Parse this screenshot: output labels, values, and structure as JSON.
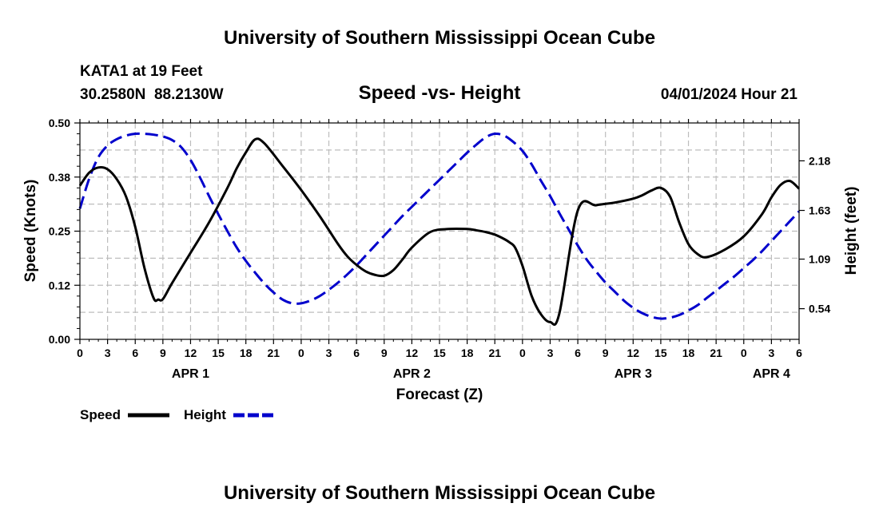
{
  "chart_data": {
    "type": "line",
    "title": "University of Southern Mississippi Ocean Cube",
    "footer_title": "University of Southern Mississippi Ocean Cube",
    "station": "KATA1 at 19 Feet",
    "location": "30.2580N  88.2130W",
    "subtitle": "Speed -vs- Height",
    "timestamp": "04/01/2024 Hour 21",
    "xlabel": "Forecast (Z)",
    "ylabel_left": "Speed (Knots)",
    "ylabel_right": "Height (feet)",
    "x_range": [
      0,
      78
    ],
    "ylim_left": [
      0,
      0.5
    ],
    "ylim_right": [
      0.2,
      2.6
    ],
    "left_ticks": [
      {
        "v": 0.0,
        "label": "0.00"
      },
      {
        "v": 0.125,
        "label": "0.12"
      },
      {
        "v": 0.25,
        "label": "0.25"
      },
      {
        "v": 0.375,
        "label": "0.38"
      },
      {
        "v": 0.5,
        "label": "0.50"
      }
    ],
    "right_ticks": [
      {
        "v": 0.54,
        "label": "0.54"
      },
      {
        "v": 1.09,
        "label": "1.09"
      },
      {
        "v": 1.63,
        "label": "1.63"
      },
      {
        "v": 2.18,
        "label": "2.18"
      }
    ],
    "x_ticks": [
      {
        "x": 0,
        "label": "0"
      },
      {
        "x": 3,
        "label": "3"
      },
      {
        "x": 6,
        "label": "6"
      },
      {
        "x": 9,
        "label": "9"
      },
      {
        "x": 12,
        "label": "12"
      },
      {
        "x": 15,
        "label": "15"
      },
      {
        "x": 18,
        "label": "18"
      },
      {
        "x": 21,
        "label": "21"
      },
      {
        "x": 24,
        "label": "0"
      },
      {
        "x": 27,
        "label": "3"
      },
      {
        "x": 30,
        "label": "6"
      },
      {
        "x": 33,
        "label": "9"
      },
      {
        "x": 36,
        "label": "12"
      },
      {
        "x": 39,
        "label": "15"
      },
      {
        "x": 42,
        "label": "18"
      },
      {
        "x": 45,
        "label": "21"
      },
      {
        "x": 48,
        "label": "0"
      },
      {
        "x": 51,
        "label": "3"
      },
      {
        "x": 54,
        "label": "6"
      },
      {
        "x": 57,
        "label": "9"
      },
      {
        "x": 60,
        "label": "12"
      },
      {
        "x": 63,
        "label": "15"
      },
      {
        "x": 66,
        "label": "18"
      },
      {
        "x": 69,
        "label": "21"
      },
      {
        "x": 72,
        "label": "0"
      },
      {
        "x": 75,
        "label": "3"
      },
      {
        "x": 78,
        "label": "6"
      }
    ],
    "day_labels": [
      {
        "x": 12,
        "label": "APR 1"
      },
      {
        "x": 36,
        "label": "APR 2"
      },
      {
        "x": 60,
        "label": "APR 3"
      },
      {
        "x": 75,
        "label": "APR 4"
      }
    ],
    "legend": [
      {
        "name": "Speed",
        "color": "#000000",
        "dash": "solid"
      },
      {
        "name": "Height",
        "color": "#0000cc",
        "dash": "dashed"
      }
    ],
    "series": [
      {
        "name": "Speed",
        "axis": "left",
        "color": "#000000",
        "x": [
          0,
          1,
          2,
          3,
          4,
          5,
          6,
          7,
          8,
          8.5,
          9,
          10,
          12,
          14,
          16,
          17,
          18,
          19,
          20,
          22,
          24,
          26,
          28,
          29,
          30,
          31,
          32,
          33,
          34,
          35,
          36,
          38,
          40,
          42,
          43,
          44,
          45,
          46,
          46.6,
          47.2,
          48,
          49,
          50,
          51,
          52,
          54,
          56,
          58,
          60,
          61,
          62,
          63,
          64,
          65,
          66,
          67,
          68,
          70,
          72,
          74,
          75,
          76,
          77,
          78
        ],
        "values": [
          0.355,
          0.385,
          0.397,
          0.393,
          0.37,
          0.33,
          0.26,
          0.165,
          0.095,
          0.092,
          0.093,
          0.13,
          0.2,
          0.27,
          0.35,
          0.395,
          0.432,
          0.462,
          0.453,
          0.4,
          0.345,
          0.285,
          0.22,
          0.192,
          0.172,
          0.157,
          0.149,
          0.147,
          0.16,
          0.185,
          0.212,
          0.248,
          0.255,
          0.255,
          0.252,
          0.248,
          0.242,
          0.232,
          0.224,
          0.212,
          0.17,
          0.1,
          0.058,
          0.04,
          0.06,
          0.298,
          0.31,
          0.316,
          0.325,
          0.333,
          0.344,
          0.35,
          0.33,
          0.27,
          0.22,
          0.197,
          0.19,
          0.208,
          0.238,
          0.29,
          0.328,
          0.357,
          0.366,
          0.348
        ]
      },
      {
        "name": "Height",
        "axis": "right",
        "color": "#0000cc",
        "x": [
          0,
          1,
          2,
          3,
          4,
          5,
          6,
          7,
          8,
          9,
          10,
          11,
          12,
          13,
          14,
          15,
          16,
          17,
          18,
          19,
          20,
          21,
          22,
          23,
          24,
          25,
          26,
          27,
          28,
          29,
          30,
          31,
          32,
          33,
          34,
          35,
          36,
          37,
          38,
          39,
          40,
          41,
          42,
          43,
          44,
          45,
          46,
          47,
          48,
          49,
          50,
          51,
          52,
          53,
          54,
          55,
          56,
          57,
          58,
          59,
          60,
          61,
          62,
          63,
          64,
          65,
          66,
          67,
          68,
          69,
          70,
          71,
          72,
          73,
          74,
          75,
          76,
          77,
          78
        ],
        "values": [
          1.65,
          1.98,
          2.22,
          2.35,
          2.42,
          2.46,
          2.48,
          2.48,
          2.47,
          2.45,
          2.41,
          2.33,
          2.19,
          2.0,
          1.79,
          1.59,
          1.4,
          1.22,
          1.07,
          0.94,
          0.82,
          0.72,
          0.64,
          0.6,
          0.6,
          0.63,
          0.68,
          0.75,
          0.83,
          0.92,
          1.02,
          1.13,
          1.24,
          1.35,
          1.46,
          1.57,
          1.67,
          1.77,
          1.87,
          1.97,
          2.07,
          2.17,
          2.27,
          2.36,
          2.44,
          2.48,
          2.46,
          2.39,
          2.29,
          2.14,
          1.96,
          1.79,
          1.6,
          1.42,
          1.24,
          1.08,
          0.95,
          0.83,
          0.73,
          0.63,
          0.55,
          0.49,
          0.45,
          0.43,
          0.44,
          0.47,
          0.52,
          0.58,
          0.66,
          0.74,
          0.82,
          0.9,
          0.99,
          1.08,
          1.18,
          1.29,
          1.4,
          1.51,
          1.62
        ]
      }
    ]
  }
}
